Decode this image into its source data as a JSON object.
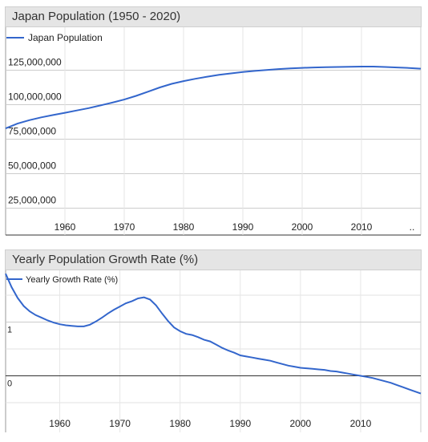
{
  "chart_data": [
    {
      "type": "line",
      "title": "Japan Population (1950 - 2020)",
      "legend": "top-left",
      "grid": true,
      "x_ticks": [
        "1960",
        "1970",
        "1980",
        "1990",
        "2000",
        "2010",
        ".."
      ],
      "y_ticks": [
        "25,000,000",
        "50,000,000",
        "75,000,000",
        "100,000,000",
        "125,000,000"
      ],
      "series": [
        {
          "name": "Japan Population",
          "color": "#3366cc",
          "x": [
            1950,
            1952,
            1954,
            1956,
            1958,
            1960,
            1962,
            1964,
            1966,
            1968,
            1970,
            1972,
            1974,
            1976,
            1978,
            1980,
            1982,
            1984,
            1986,
            1988,
            1990,
            1992,
            1994,
            1996,
            1998,
            2000,
            2002,
            2004,
            2006,
            2008,
            2010,
            2012,
            2014,
            2016,
            2018,
            2020
          ],
          "y": [
            82800000,
            86300000,
            88800000,
            90800000,
            92500000,
            94100000,
            95800000,
            97500000,
            99500000,
            101500000,
            103700000,
            106400000,
            109400000,
            112500000,
            115100000,
            117100000,
            118800000,
            120300000,
            121600000,
            122700000,
            123700000,
            124500000,
            125200000,
            125800000,
            126300000,
            126700000,
            127000000,
            127200000,
            127300000,
            127500000,
            127600000,
            127600000,
            127300000,
            127000000,
            126600000,
            126100000
          ]
        }
      ]
    },
    {
      "type": "line",
      "title": "Yearly Population Growth Rate (%)",
      "legend": "top-left",
      "grid": true,
      "x_ticks": [
        "1960",
        "1970",
        "1980",
        "1990",
        "2000",
        "2010"
      ],
      "y_ticks": [
        "0",
        "1"
      ],
      "series": [
        {
          "name": "Yearly Growth Rate (%)",
          "color": "#3366cc",
          "x": [
            1951,
            1952,
            1953,
            1954,
            1955,
            1956,
            1957,
            1958,
            1959,
            1960,
            1961,
            1962,
            1963,
            1964,
            1965,
            1966,
            1967,
            1968,
            1969,
            1970,
            1971,
            1972,
            1973,
            1974,
            1975,
            1976,
            1977,
            1978,
            1979,
            1980,
            1981,
            1982,
            1983,
            1984,
            1985,
            1986,
            1987,
            1988,
            1989,
            1990,
            1991,
            1992,
            1993,
            1994,
            1995,
            1996,
            1997,
            1998,
            1999,
            2000,
            2001,
            2002,
            2003,
            2004,
            2005,
            2006,
            2007,
            2008,
            2009,
            2010,
            2011,
            2012,
            2013,
            2014,
            2015,
            2016,
            2017,
            2018,
            2019,
            2020
          ],
          "y": [
            1.9,
            1.65,
            1.45,
            1.3,
            1.2,
            1.13,
            1.08,
            1.03,
            0.99,
            0.96,
            0.94,
            0.93,
            0.92,
            0.92,
            0.95,
            1.01,
            1.08,
            1.16,
            1.23,
            1.29,
            1.35,
            1.39,
            1.44,
            1.46,
            1.42,
            1.31,
            1.16,
            1.02,
            0.9,
            0.83,
            0.78,
            0.76,
            0.72,
            0.67,
            0.64,
            0.58,
            0.52,
            0.47,
            0.43,
            0.38,
            0.36,
            0.34,
            0.32,
            0.3,
            0.28,
            0.25,
            0.22,
            0.19,
            0.17,
            0.15,
            0.14,
            0.13,
            0.12,
            0.11,
            0.09,
            0.08,
            0.06,
            0.04,
            0.02,
            0.0,
            -0.02,
            -0.04,
            -0.07,
            -0.1,
            -0.13,
            -0.17,
            -0.21,
            -0.25,
            -0.29,
            -0.33
          ]
        }
      ]
    }
  ]
}
